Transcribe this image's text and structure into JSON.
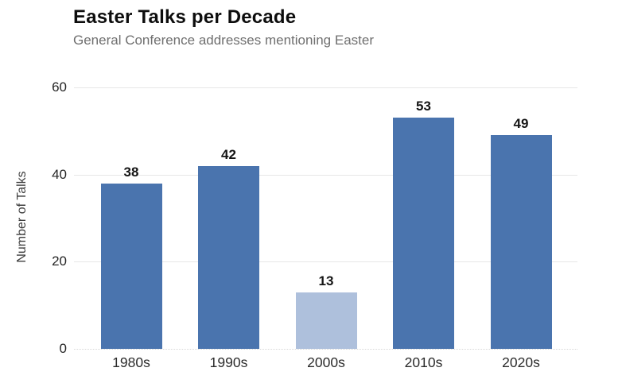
{
  "chart": {
    "title": "Easter Talks per Decade",
    "subtitle": "General Conference addresses mentioning Easter"
  },
  "chart_data": {
    "type": "bar",
    "title": "Easter Talks per Decade",
    "subtitle": "General Conference addresses mentioning Easter",
    "categories": [
      "1980s",
      "1990s",
      "2000s",
      "2010s",
      "2020s"
    ],
    "values": [
      38,
      42,
      13,
      53,
      49
    ],
    "xlabel": "",
    "ylabel": "Number of Talks",
    "ylim": [
      0,
      60
    ],
    "yticks": [
      0,
      20,
      40,
      60
    ],
    "grid": true,
    "legend": "none",
    "bar_colors": [
      "#4a74ae",
      "#4a74ae",
      "#aec0dc",
      "#4a74ae",
      "#4a74ae"
    ],
    "highlight_note": "2000s bar rendered in lighter blue",
    "colors": {
      "bar_default": "#4a74ae",
      "bar_highlight": "#aec0dc",
      "gridline": "#e7e7e7",
      "title_text": "#0d0d0d",
      "subtitle_text": "#6f6f6f",
      "tick_text": "#262626",
      "background": "#ffffff"
    }
  }
}
